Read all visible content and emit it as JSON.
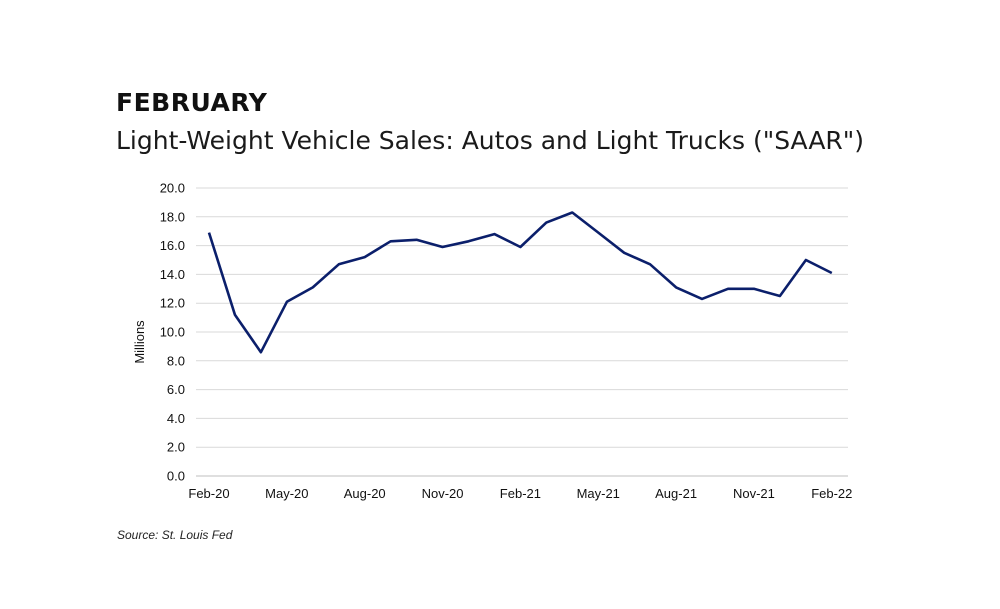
{
  "header": {
    "title": "FEBRUARY",
    "subtitle": "Light-Weight Vehicle Sales: Autos and Light Trucks (\"SAAR\")"
  },
  "footer": {
    "source": "Source: St. Louis Fed"
  },
  "colors": {
    "line": "#0b1f6b",
    "grid": "#d9d9d9",
    "axis": "#bfbfbf"
  },
  "chart_data": {
    "type": "line",
    "title": "Light-Weight Vehicle Sales: Autos and Light Trucks (\"SAAR\")",
    "xlabel": "",
    "ylabel": "Millions",
    "ylim": [
      0,
      20
    ],
    "yticks": [
      "0.0",
      "2.0",
      "4.0",
      "6.0",
      "8.0",
      "10.0",
      "12.0",
      "14.0",
      "16.0",
      "18.0",
      "20.0"
    ],
    "xtick_labels": [
      "Feb-20",
      "May-20",
      "Aug-20",
      "Nov-20",
      "Feb-21",
      "May-21",
      "Aug-21",
      "Nov-21",
      "Feb-22"
    ],
    "grid": true,
    "legend": "none",
    "series": [
      {
        "x": [
          "Feb-20",
          "Mar-20",
          "Apr-20",
          "May-20",
          "Jun-20",
          "Jul-20",
          "Aug-20",
          "Sep-20",
          "Oct-20",
          "Nov-20",
          "Dec-20",
          "Jan-21",
          "Feb-21",
          "Mar-21",
          "Apr-21",
          "May-21",
          "Jun-21",
          "Jul-21",
          "Aug-21",
          "Sep-21",
          "Oct-21",
          "Nov-21",
          "Dec-21",
          "Jan-22",
          "Feb-22"
        ],
        "values": [
          16.9,
          11.2,
          8.6,
          12.1,
          13.1,
          14.7,
          15.2,
          16.3,
          16.4,
          15.9,
          16.3,
          16.8,
          15.9,
          17.6,
          18.3,
          16.9,
          15.5,
          14.7,
          13.1,
          12.3,
          13.0,
          13.0,
          12.5,
          15.0,
          14.1
        ]
      }
    ]
  }
}
